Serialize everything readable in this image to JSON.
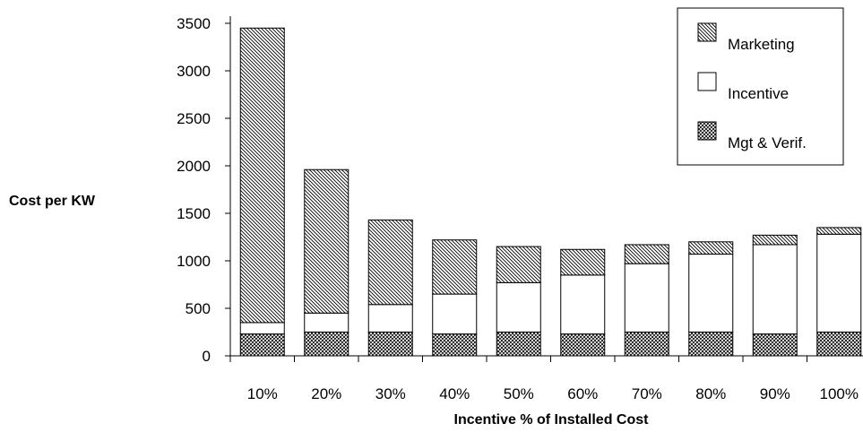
{
  "chart_data": {
    "type": "bar",
    "stacked": true,
    "title": "",
    "xlabel": "Incentive % of Installed Cost",
    "ylabel": "Cost per KW",
    "ylim": [
      0,
      3500
    ],
    "yticks": [
      "0",
      "500",
      "1000",
      "1500",
      "2000",
      "2500",
      "3000",
      "3500"
    ],
    "categories": [
      "10%",
      "20%",
      "30%",
      "40%",
      "50%",
      "60%",
      "70%",
      "80%",
      "90%",
      "100%"
    ],
    "series": [
      {
        "name": "Mgt & Verif.",
        "pattern": "crosshatch",
        "values": [
          230,
          250,
          250,
          230,
          250,
          230,
          250,
          250,
          230,
          250
        ]
      },
      {
        "name": "Incentive",
        "pattern": "none",
        "values": [
          120,
          200,
          290,
          420,
          520,
          620,
          720,
          820,
          940,
          1030
        ]
      },
      {
        "name": "Marketing",
        "pattern": "diagonal",
        "values": [
          3100,
          1510,
          890,
          570,
          380,
          270,
          200,
          130,
          100,
          70
        ]
      }
    ],
    "legend": {
      "position": "top-right",
      "order": [
        "Marketing",
        "Incentive",
        "Mgt & Verif."
      ]
    },
    "grid": false
  }
}
